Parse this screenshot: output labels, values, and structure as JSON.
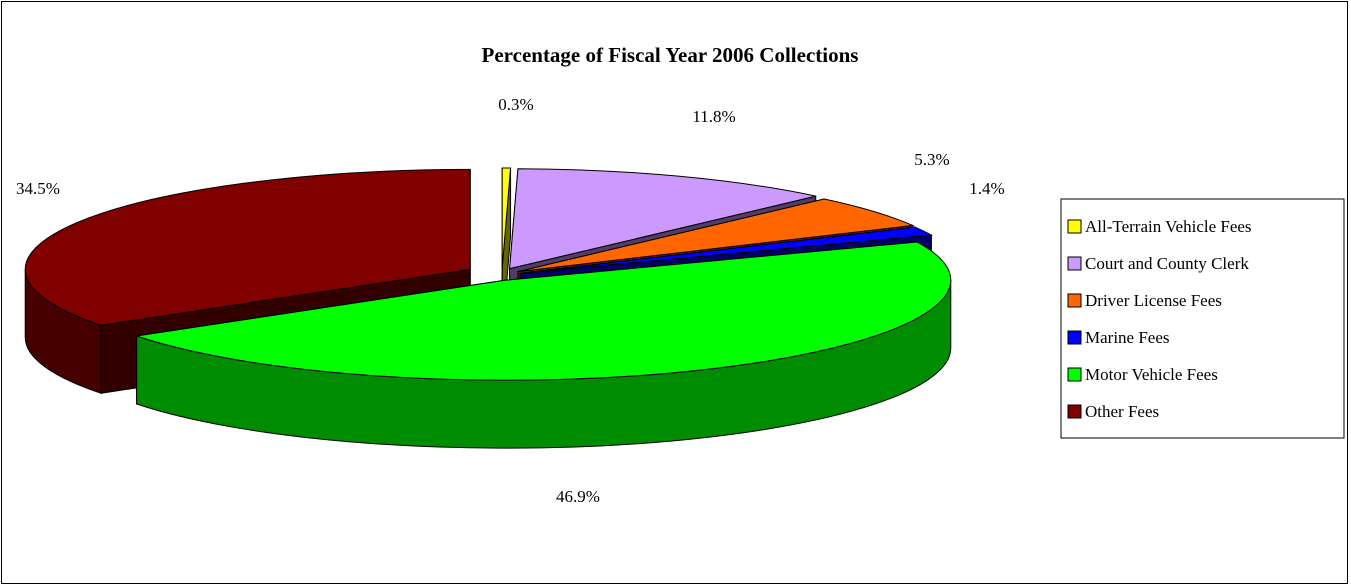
{
  "chart_data": {
    "type": "pie",
    "title": "Percentage of Fiscal Year 2006 Collections",
    "slices": [
      {
        "label": "All-Terrain Vehicle Fees",
        "value": 0.3,
        "value_label": "0.3%",
        "color": "#FFFF00"
      },
      {
        "label": "Court and County Clerk",
        "value": 11.8,
        "value_label": "11.8%",
        "color": "#CC99FF"
      },
      {
        "label": "Driver License Fees",
        "value": 5.3,
        "value_label": "5.3%",
        "color": "#FF6600"
      },
      {
        "label": "Marine Fees",
        "value": 1.4,
        "value_label": "1.4%",
        "color": "#0000FF"
      },
      {
        "label": "Motor Vehicle Fees",
        "value": 46.9,
        "value_label": "46.9%",
        "color": "#00FF00"
      },
      {
        "label": "Other Fees",
        "value": 34.5,
        "value_label": "34.5%",
        "color": "#800000"
      }
    ],
    "legend_position": "right",
    "style": "3d-exploded"
  }
}
